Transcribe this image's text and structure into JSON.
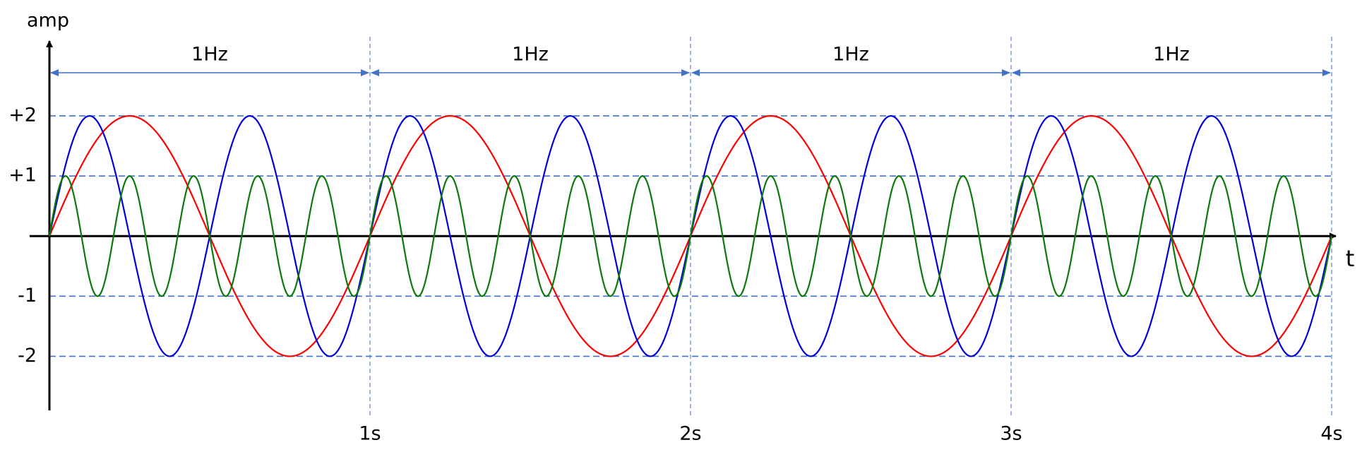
{
  "chart_data": {
    "type": "wave",
    "x_label": "t",
    "y_label": "amp",
    "xlim": [
      0,
      4
    ],
    "ylim": [
      -2.9,
      3.2
    ],
    "xticks": [
      {
        "value": 1,
        "label": "1s"
      },
      {
        "value": 2,
        "label": "2s"
      },
      {
        "value": 3,
        "label": "3s"
      },
      {
        "value": 4,
        "label": "4s"
      }
    ],
    "yticks": [
      {
        "value": 2,
        "label": "+2"
      },
      {
        "value": 1,
        "label": "+1"
      },
      -1,
      -2
    ],
    "grid": true,
    "grid_color": "#4472c4",
    "spans": [
      {
        "from": 0,
        "to": 1,
        "label": "1Hz"
      },
      {
        "from": 1,
        "to": 2,
        "label": "1Hz"
      },
      {
        "from": 2,
        "to": 3,
        "label": "1Hz"
      },
      {
        "from": 3,
        "to": 4,
        "label": "1Hz"
      }
    ],
    "series": [
      {
        "color": "#ff0000",
        "amplitude": 2,
        "frequency": 1
      },
      {
        "color": "#0000dd",
        "amplitude": 2,
        "frequency": 2
      },
      {
        "color": "#0a7a0a",
        "amplitude": 1,
        "frequency": 5
      }
    ]
  }
}
